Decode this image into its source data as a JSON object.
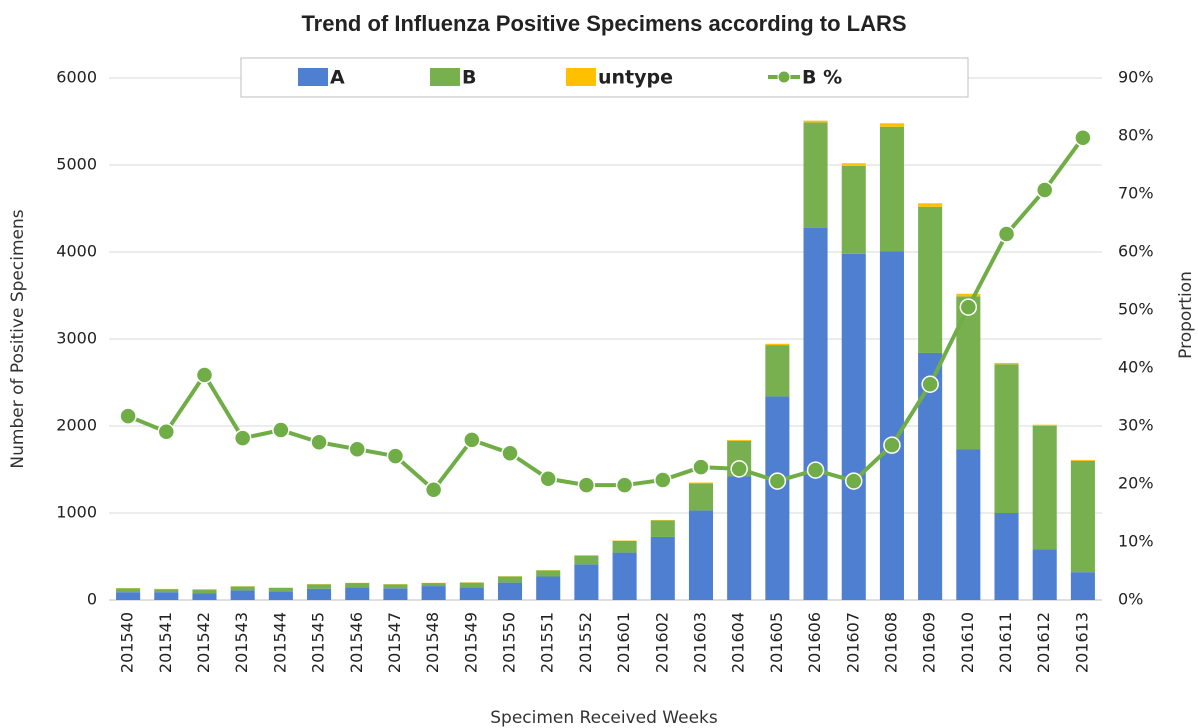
{
  "chart_data": {
    "type": "bar",
    "stacked": true,
    "title": "Trend of Influenza Positive Specimens according to LARS",
    "x_label": "Specimen Received Weeks",
    "y_label": "Number of Positive Specimens",
    "y2_label": "Proportion",
    "categories": [
      "201540",
      "201541",
      "201542",
      "201543",
      "201544",
      "201545",
      "201546",
      "201547",
      "201548",
      "201549",
      "201550",
      "201551",
      "201552",
      "201601",
      "201602",
      "201603",
      "201604",
      "201605",
      "201606",
      "201607",
      "201608",
      "201609",
      "201610",
      "201611",
      "201612",
      "201613"
    ],
    "series": [
      {
        "name": "A",
        "color": "#4f7fd0",
        "values": [
          90,
          90,
          75,
          110,
          100,
          130,
          145,
          135,
          160,
          145,
          200,
          270,
          410,
          545,
          725,
          1030,
          1420,
          2340,
          4280,
          3980,
          4010,
          2840,
          1730,
          1000,
          580,
          320
        ]
      },
      {
        "name": "B",
        "color": "#78b04f",
        "values": [
          45,
          35,
          45,
          45,
          40,
          50,
          50,
          45,
          35,
          55,
          70,
          70,
          100,
          135,
          190,
          310,
          410,
          590,
          1210,
          1010,
          1430,
          1680,
          1760,
          1710,
          1420,
          1280
        ]
      },
      {
        "name": "untype",
        "color": "#ffc000",
        "values": [
          3,
          3,
          3,
          3,
          3,
          3,
          3,
          3,
          3,
          3,
          3,
          3,
          5,
          5,
          5,
          10,
          10,
          15,
          20,
          30,
          40,
          40,
          30,
          15,
          15,
          10
        ]
      },
      {
        "name": "B %",
        "color": "#70ad47",
        "type": "line",
        "axis": "y2",
        "values": [
          31.7,
          29.0,
          38.8,
          27.9,
          29.3,
          27.2,
          26.0,
          24.8,
          19.0,
          27.6,
          25.3,
          20.9,
          19.8,
          19.8,
          20.7,
          22.9,
          22.6,
          20.5,
          22.4,
          20.5,
          26.7,
          37.2,
          50.5,
          63.1,
          70.7,
          79.7
        ]
      }
    ],
    "ylim": [
      0,
      6000
    ],
    "yticks": [
      0,
      1000,
      2000,
      3000,
      4000,
      5000,
      6000
    ],
    "y2lim": [
      0,
      90
    ],
    "y2ticks": [
      {
        "value": 0,
        "label": "0%"
      },
      {
        "value": 10,
        "label": "10%"
      },
      {
        "value": 20,
        "label": "20%"
      },
      {
        "value": 30,
        "label": "30%"
      },
      {
        "value": 40,
        "label": "40%"
      },
      {
        "value": 50,
        "label": "50%"
      },
      {
        "value": 60,
        "label": "60%"
      },
      {
        "value": 70,
        "label": "70%"
      },
      {
        "value": 80,
        "label": "80%"
      },
      {
        "value": 90,
        "label": "90%"
      }
    ],
    "grid": true,
    "legend": "top"
  }
}
